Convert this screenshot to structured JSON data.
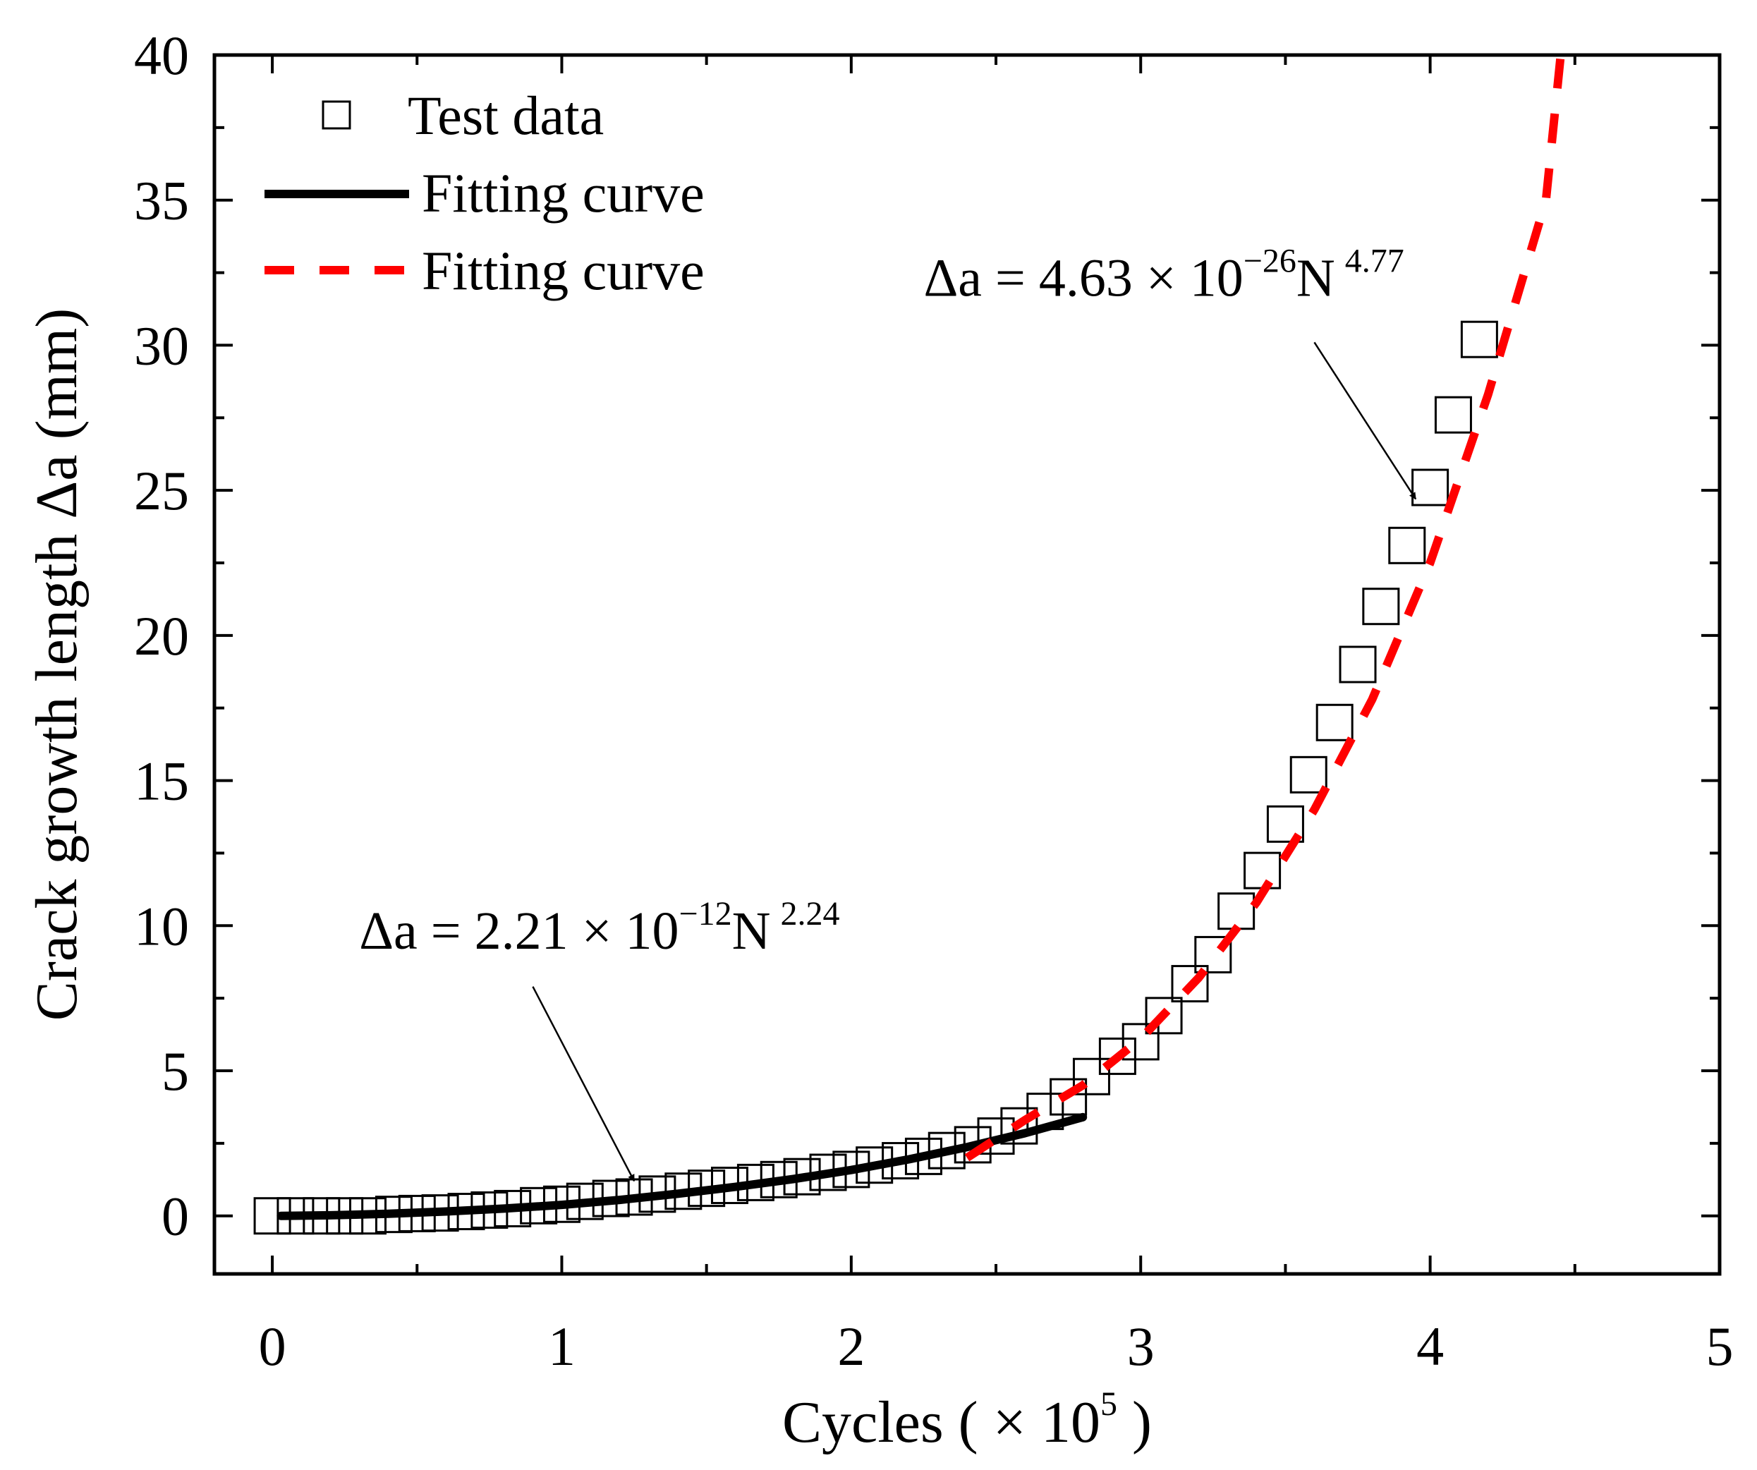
{
  "chart_data": {
    "type": "scatter",
    "title": "",
    "xlabel": "Cycles ( × 10",
    "xlabel_exp": "5",
    "xlabel_end": " )",
    "ylabel": "Crack growth length Δa (mm)",
    "xlim": [
      -0.2,
      5
    ],
    "ylim": [
      -2,
      40
    ],
    "x_ticks": [
      0,
      1,
      2,
      3,
      4,
      5
    ],
    "x_tick_labels": [
      "0",
      "1",
      "2",
      "3",
      "4",
      "5"
    ],
    "y_ticks": [
      0,
      5,
      10,
      15,
      20,
      25,
      30,
      35,
      40
    ],
    "y_tick_labels": [
      "0",
      "5",
      "10",
      "15",
      "20",
      "25",
      "30",
      "35",
      "40"
    ],
    "grid": false,
    "legend_position": "top-left",
    "series": [
      {
        "name": "Test data",
        "kind": "markers",
        "marker": "open-square",
        "color": "#000000",
        "x": [
          0,
          0.08,
          0.17,
          0.25,
          0.33,
          0.42,
          0.5,
          0.58,
          0.67,
          0.75,
          0.83,
          0.92,
          1.0,
          1.08,
          1.17,
          1.25,
          1.33,
          1.42,
          1.5,
          1.58,
          1.67,
          1.75,
          1.83,
          1.92,
          2.0,
          2.08,
          2.17,
          2.25,
          2.33,
          2.42,
          2.5,
          2.58,
          2.67,
          2.75,
          2.83,
          2.92,
          3.0,
          3.08,
          3.17,
          3.25,
          3.33,
          3.42,
          3.5,
          3.58,
          3.67,
          3.75,
          3.83,
          3.92,
          4.0,
          4.08,
          4.17
        ],
        "y": [
          0,
          0,
          0,
          0,
          0,
          0.05,
          0.08,
          0.1,
          0.15,
          0.2,
          0.25,
          0.35,
          0.4,
          0.5,
          0.6,
          0.65,
          0.75,
          0.85,
          0.95,
          1.05,
          1.15,
          1.25,
          1.35,
          1.5,
          1.6,
          1.75,
          1.9,
          2.05,
          2.25,
          2.45,
          2.75,
          3.1,
          3.6,
          4.1,
          4.8,
          5.5,
          6.0,
          6.9,
          8.0,
          9.0,
          10.5,
          11.9,
          13.5,
          15.2,
          17.0,
          19.0,
          21.0,
          23.1,
          25.1,
          27.6,
          30.2
        ]
      },
      {
        "name": "Fitting curve",
        "kind": "line",
        "style": "solid",
        "color": "#000000",
        "x": [
          0.03,
          0.2,
          0.4,
          0.6,
          0.8,
          1.0,
          1.2,
          1.4,
          1.6,
          1.8,
          2.0,
          2.2,
          2.4,
          2.6,
          2.8
        ],
        "y": [
          0,
          0.02,
          0.07,
          0.15,
          0.25,
          0.38,
          0.55,
          0.76,
          1.0,
          1.27,
          1.58,
          1.95,
          2.37,
          2.85,
          3.4
        ]
      },
      {
        "name": "Fitting curve",
        "kind": "line",
        "style": "dashed",
        "color": "#ff0000",
        "x": [
          2.4,
          2.6,
          2.8,
          3.0,
          3.2,
          3.4,
          3.6,
          3.8,
          4.0,
          4.2,
          4.4,
          4.45
        ],
        "y": [
          2.0,
          3.3,
          4.5,
          6.1,
          8.2,
          10.8,
          14.0,
          17.8,
          22.5,
          28.3,
          35.0,
          39.9
        ]
      }
    ],
    "annotations": [
      {
        "base": "Δa = 2.21 × 10",
        "exp": "−12",
        "rest": "N",
        "exp2": "2.24",
        "text_at": [
          0.3,
          9.2
        ],
        "arrow_from": [
          0.9,
          7.9
        ],
        "arrow_to": [
          1.25,
          1.2
        ]
      },
      {
        "base": "Δa = 4.63 × 10",
        "exp": "−26",
        "rest": "N",
        "exp2": "4.77",
        "text_at": [
          2.25,
          31.7
        ],
        "arrow_from": [
          3.6,
          30.1
        ],
        "arrow_to": [
          3.95,
          24.7
        ]
      }
    ]
  }
}
